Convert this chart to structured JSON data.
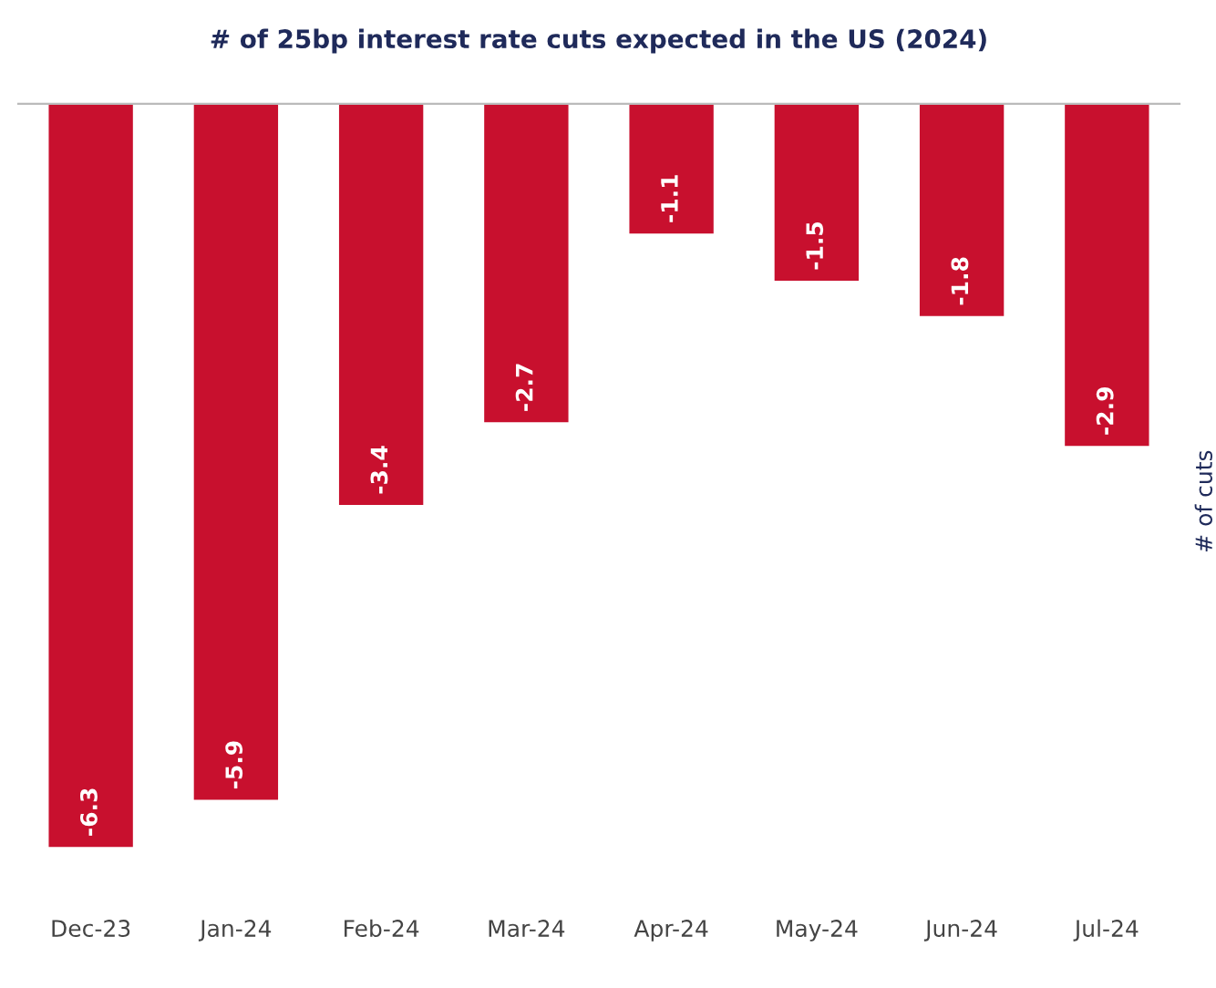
{
  "chart_data": {
    "type": "bar",
    "title": "# of 25bp interest rate cuts expected in the US (2024)",
    "ylabel": "# of cuts",
    "categories": [
      "Dec-23",
      "Jan-24",
      "Feb-24",
      "Mar-24",
      "Apr-24",
      "May-24",
      "Jun-24",
      "Jul-24"
    ],
    "values": [
      -6.3,
      -5.9,
      -3.4,
      -2.7,
      -1.1,
      -1.5,
      -1.8,
      -2.9
    ],
    "color": "#c8102e",
    "data_labels": true
  }
}
